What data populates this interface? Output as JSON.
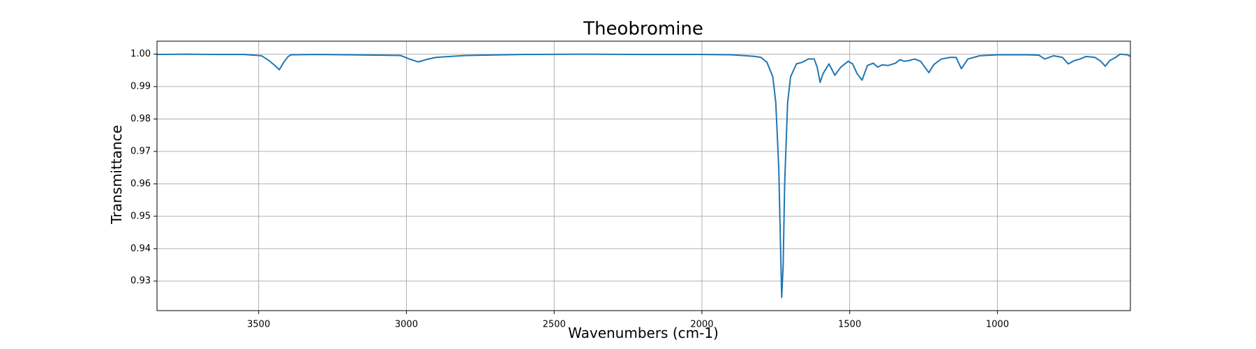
{
  "chart_data": {
    "type": "line",
    "title": "Theobromine",
    "x_label": "Wavenumbers (cm-1)",
    "y_label": "Transmittance",
    "color": "#1f77b4",
    "grid": true,
    "xlim": [
      3844,
      550
    ],
    "ylim": [
      0.9209,
      1.004
    ],
    "xticks": [
      3500,
      3000,
      2500,
      2000,
      1500,
      1000
    ],
    "yticks": [
      0.93,
      0.94,
      0.95,
      0.96,
      0.97,
      0.98,
      0.99,
      {
        "value": 1,
        "label": "1.00"
      }
    ],
    "x": [
      3844,
      3750,
      3650,
      3550,
      3490,
      3465,
      3445,
      3430,
      3415,
      3400,
      3390,
      3300,
      3200,
      3100,
      3020,
      2990,
      2960,
      2930,
      2900,
      2800,
      2600,
      2400,
      2200,
      2000,
      1900,
      1850,
      1820,
      1800,
      1780,
      1760,
      1750,
      1740,
      1735,
      1730,
      1725,
      1720,
      1710,
      1700,
      1680,
      1660,
      1640,
      1620,
      1610,
      1600,
      1590,
      1570,
      1550,
      1530,
      1505,
      1490,
      1475,
      1458,
      1440,
      1420,
      1405,
      1390,
      1370,
      1345,
      1330,
      1315,
      1300,
      1280,
      1260,
      1232,
      1215,
      1190,
      1160,
      1140,
      1122,
      1100,
      1060,
      1000,
      900,
      860,
      840,
      810,
      780,
      760,
      740,
      720,
      700,
      670,
      650,
      635,
      620,
      600,
      585,
      560,
      550
    ],
    "values": [
      0.9999,
      1.0,
      0.9999,
      0.9999,
      0.9995,
      0.998,
      0.9965,
      0.9952,
      0.9975,
      0.9993,
      0.9998,
      0.9999,
      0.9998,
      0.9997,
      0.9996,
      0.9985,
      0.9976,
      0.9984,
      0.999,
      0.9996,
      0.9999,
      1.0,
      0.9999,
      0.9999,
      0.9998,
      0.9995,
      0.9993,
      0.999,
      0.9975,
      0.993,
      0.985,
      0.965,
      0.945,
      0.925,
      0.935,
      0.96,
      0.985,
      0.993,
      0.997,
      0.9975,
      0.9985,
      0.9985,
      0.996,
      0.9913,
      0.994,
      0.997,
      0.9935,
      0.996,
      0.9978,
      0.997,
      0.994,
      0.992,
      0.9965,
      0.9972,
      0.996,
      0.9967,
      0.9965,
      0.9972,
      0.9983,
      0.9978,
      0.998,
      0.9985,
      0.9978,
      0.9943,
      0.9968,
      0.9985,
      0.999,
      0.999,
      0.9955,
      0.9985,
      0.9995,
      0.9998,
      0.9998,
      0.9997,
      0.9985,
      0.9995,
      0.999,
      0.997,
      0.998,
      0.9985,
      0.9993,
      0.999,
      0.9978,
      0.9963,
      0.998,
      0.999,
      1.0,
      0.9998,
      0.9993
    ]
  }
}
